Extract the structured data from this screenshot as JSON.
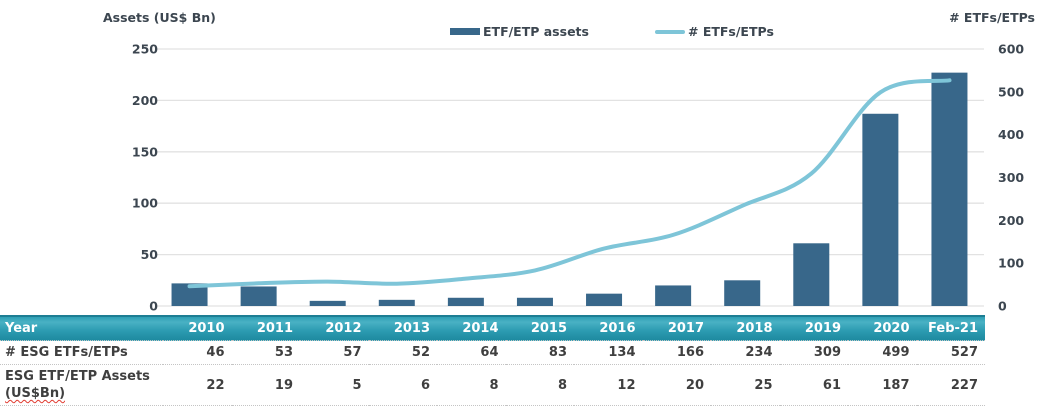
{
  "chart_data": {
    "type": "combo",
    "categories": [
      "2010",
      "2011",
      "2012",
      "2013",
      "2014",
      "2015",
      "2016",
      "2017",
      "2018",
      "2019",
      "2020",
      "Feb-21"
    ],
    "series": [
      {
        "name": "ETF/ETP assets",
        "type": "bar",
        "axis": "left",
        "color": "#38678a",
        "values": [
          22,
          19,
          5,
          6,
          8,
          8,
          12,
          20,
          25,
          61,
          187,
          227
        ]
      },
      {
        "name": "# ETFs/ETPs",
        "type": "line",
        "axis": "right",
        "color": "#7ec5d8",
        "values": [
          46,
          53,
          57,
          52,
          64,
          83,
          134,
          166,
          234,
          309,
          499,
          527
        ]
      }
    ],
    "left_axis": {
      "title": "Assets (US$ Bn)",
      "range": [
        0,
        250
      ],
      "ticks": [
        0,
        50,
        100,
        150,
        200,
        250
      ]
    },
    "right_axis": {
      "title": "# ETFs/ETPs",
      "range": [
        0,
        600
      ],
      "ticks": [
        0,
        100,
        200,
        300,
        400,
        500,
        600
      ]
    },
    "grid": true,
    "legend_position": "top"
  },
  "table": {
    "header": {
      "label": "Year",
      "columns": [
        "2010",
        "2011",
        "2012",
        "2013",
        "2014",
        "2015",
        "2016",
        "2017",
        "2018",
        "2019",
        "2020",
        "Feb-21"
      ]
    },
    "rows": [
      {
        "label": "# ESG ETFs/ETPs",
        "label_line2": "",
        "values": [
          "46",
          "53",
          "57",
          "52",
          "64",
          "83",
          "134",
          "166",
          "234",
          "309",
          "499",
          "527"
        ]
      },
      {
        "label": "ESG ETF/ETP Assets",
        "label_line2": "(US$Bn)",
        "values": [
          "22",
          "19",
          "5",
          "6",
          "8",
          "8",
          "12",
          "20",
          "25",
          "61",
          "187",
          "227"
        ]
      }
    ]
  },
  "colors": {
    "bar": "#38678a",
    "line": "#7ec5d8",
    "grid": "#e2e2e2",
    "chart_text": "#3c4650",
    "table_text": "#3f3f3f",
    "table_header_teal": "#2c9bb1",
    "spellcheck_red": "#e03a2f"
  }
}
